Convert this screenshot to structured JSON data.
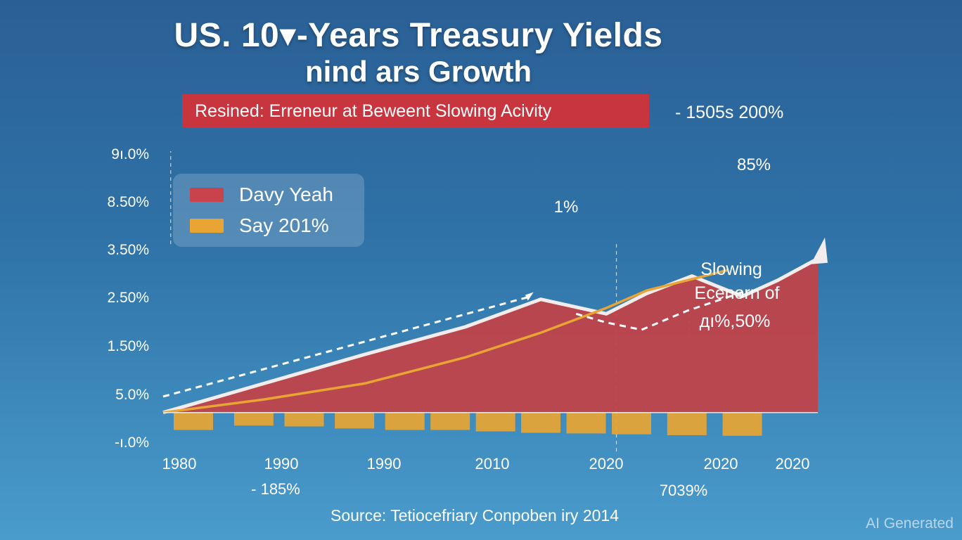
{
  "title_line1": "US. 10▾-Years Treasury Yields",
  "title_line2": "nind ars Growth",
  "banner_text": "Resined: Erreneur at Beweent Slowing Acivity",
  "top_right_label": "- 1505s 200%",
  "legend": {
    "items": [
      {
        "label": "Davy Yeah",
        "color": "#c8434b"
      },
      {
        "label": "Say 201%",
        "color": "#e8a533"
      }
    ]
  },
  "colors": {
    "area_fill": "#c0434a",
    "area_outline": "#f2ecec",
    "orange": "#e8a533",
    "dashed": "#ffffff",
    "banner": "#c8353e"
  },
  "chart_data": {
    "type": "area",
    "title": "US. 10▾-Years Treasury Yields nind ars Growth",
    "y_tick_labels": [
      "9ı.0%",
      "8.50%",
      "3.50%",
      "2.50%",
      "1.50%",
      "5.0%",
      "-ı.0%"
    ],
    "x_tick_labels": [
      "1980",
      "1990",
      "1990",
      "2010",
      "2020",
      "2020",
      "2020"
    ],
    "ylim": [
      -1,
      9
    ],
    "xlim": [
      0,
      13
    ],
    "series": [
      {
        "name": "Davy Yeah",
        "kind": "area",
        "x": [
          0,
          2,
          4,
          6,
          7.5,
          8.8,
          9.6,
          10.5,
          11.5,
          12.2,
          13
        ],
        "values": [
          0,
          1,
          2,
          2.95,
          3.9,
          3.4,
          4.1,
          4.7,
          4.0,
          4.55,
          5.3
        ]
      },
      {
        "name": "Say 201%",
        "kind": "line",
        "x": [
          0,
          2,
          4,
          6,
          7.5,
          8.8,
          9.6,
          11.2
        ],
        "values": [
          0,
          0.45,
          1.0,
          1.9,
          2.75,
          3.6,
          4.2,
          4.9
        ]
      },
      {
        "name": "trend-1",
        "kind": "dashed",
        "x": [
          0,
          7.3
        ],
        "values": [
          0.55,
          4.0
        ]
      },
      {
        "name": "trend-2",
        "kind": "dashed",
        "x": [
          8.2,
          8.8,
          9.5,
          10.4,
          11.6
        ],
        "values": [
          3.4,
          3.1,
          2.85,
          3.5,
          4.2
        ]
      },
      {
        "name": "bars",
        "kind": "bar",
        "x": [
          0.6,
          1.8,
          2.8,
          3.8,
          4.8,
          5.7,
          6.6,
          7.5,
          8.4,
          9.3,
          10.4,
          11.5
        ],
        "values": [
          -0.6,
          -0.45,
          -0.48,
          -0.55,
          -0.6,
          -0.6,
          -0.65,
          -0.7,
          -0.72,
          -0.75,
          -0.78,
          -0.8
        ]
      }
    ],
    "annotations": [
      {
        "text": "85%",
        "x": 11.3,
        "y": 5.0
      },
      {
        "text": "1%",
        "x": 7.6,
        "y": 4.1
      },
      {
        "text": "Slowing",
        "x": 11.0,
        "y": 2.6
      },
      {
        "text": "Ecenorn of",
        "x": 11.0,
        "y": 2.0
      },
      {
        "text": "дı%,50%",
        "x": 11.0,
        "y": 1.5
      }
    ],
    "below_axis_labels": [
      {
        "text": "- 185%",
        "x": 1.3
      },
      {
        "text": "7039%",
        "x": 9.4
      }
    ]
  },
  "source_text": "Source: Tetiocefriary Conpoben iry 2014",
  "watermark": "AI Generated"
}
